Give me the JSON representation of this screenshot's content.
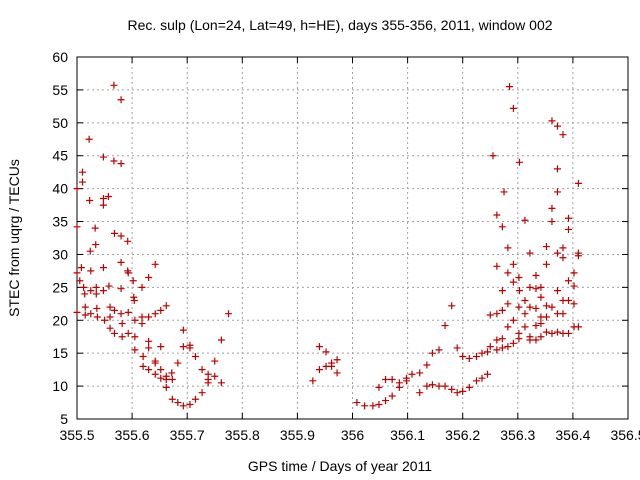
{
  "chart_data": {
    "type": "scatter",
    "title": "Rec. sulp (Lon=24, Lat=49, h=HE), days 355-356, 2011, window 002",
    "xlabel": "GPS time / Days of year 2011",
    "ylabel": "STEC from uqrg / TECUs",
    "xlim": [
      355.5,
      356.5
    ],
    "ylim": [
      5,
      60
    ],
    "xticks": [
      "355.5",
      "355.6",
      "355.7",
      "355.8",
      "355.9",
      "356",
      "356.1",
      "356.2",
      "356.3",
      "356.4",
      "356.5"
    ],
    "yticks": [
      "5",
      "10",
      "15",
      "20",
      "25",
      "30",
      "35",
      "40",
      "45",
      "50",
      "55",
      "60"
    ],
    "grid": true,
    "legend": "none",
    "marker": "plus",
    "color": "#c00000",
    "points": [
      [
        355.5,
        40.0
      ],
      [
        355.5,
        34.2
      ],
      [
        355.5,
        27.2
      ],
      [
        355.5,
        21.2
      ],
      [
        355.505,
        26.0
      ],
      [
        355.508,
        28.0
      ],
      [
        355.51,
        42.5
      ],
      [
        355.51,
        41.0
      ],
      [
        355.512,
        25.0
      ],
      [
        355.514,
        24.0
      ],
      [
        355.515,
        22.0
      ],
      [
        355.515,
        20.8
      ],
      [
        355.522,
        47.5
      ],
      [
        355.523,
        38.2
      ],
      [
        355.524,
        30.5
      ],
      [
        355.525,
        27.5
      ],
      [
        355.525,
        24.5
      ],
      [
        355.525,
        21.0
      ],
      [
        355.533,
        34.0
      ],
      [
        355.534,
        31.5
      ],
      [
        355.535,
        25.0
      ],
      [
        355.535,
        24.0
      ],
      [
        355.536,
        21.8
      ],
      [
        355.537,
        20.5
      ],
      [
        355.548,
        44.8
      ],
      [
        355.548,
        38.5
      ],
      [
        355.548,
        37.5
      ],
      [
        355.548,
        28.0
      ],
      [
        355.548,
        24.5
      ],
      [
        355.55,
        20.0
      ],
      [
        355.557,
        38.8
      ],
      [
        355.558,
        25.2
      ],
      [
        355.56,
        22.0
      ],
      [
        355.56,
        20.5
      ],
      [
        355.56,
        18.8
      ],
      [
        355.567,
        55.7
      ],
      [
        355.567,
        44.2
      ],
      [
        355.568,
        33.2
      ],
      [
        355.568,
        21.5
      ],
      [
        355.568,
        18.0
      ],
      [
        355.58,
        53.5
      ],
      [
        355.58,
        43.8
      ],
      [
        355.58,
        32.8
      ],
      [
        355.58,
        28.8
      ],
      [
        355.58,
        24.8
      ],
      [
        355.58,
        21.0
      ],
      [
        355.582,
        19.5
      ],
      [
        355.582,
        17.5
      ],
      [
        355.592,
        32.0
      ],
      [
        355.592,
        27.5
      ],
      [
        355.593,
        27.2
      ],
      [
        355.593,
        21.2
      ],
      [
        355.593,
        18.0
      ],
      [
        355.602,
        26.0
      ],
      [
        355.603,
        23.5
      ],
      [
        355.604,
        23.0
      ],
      [
        355.605,
        20.0
      ],
      [
        355.605,
        17.5
      ],
      [
        355.605,
        15.5
      ],
      [
        355.618,
        25.0
      ],
      [
        355.618,
        20.5
      ],
      [
        355.618,
        19.5
      ],
      [
        355.62,
        14.5
      ],
      [
        355.62,
        13.0
      ],
      [
        355.63,
        26.5
      ],
      [
        355.63,
        20.5
      ],
      [
        355.63,
        16.8
      ],
      [
        355.63,
        15.8
      ],
      [
        355.63,
        12.5
      ],
      [
        355.642,
        28.5
      ],
      [
        355.642,
        21.0
      ],
      [
        355.642,
        13.8
      ],
      [
        355.642,
        13.5
      ],
      [
        355.642,
        11.8
      ],
      [
        355.652,
        21.5
      ],
      [
        355.652,
        16.0
      ],
      [
        355.652,
        12.5
      ],
      [
        355.652,
        11.2
      ],
      [
        355.662,
        22.2
      ],
      [
        355.662,
        11.5
      ],
      [
        355.662,
        11.0
      ],
      [
        355.662,
        9.8
      ],
      [
        355.672,
        12.0
      ],
      [
        355.673,
        11.0
      ],
      [
        355.673,
        8.0
      ],
      [
        355.683,
        13.5
      ],
      [
        355.683,
        7.5
      ],
      [
        355.693,
        18.5
      ],
      [
        355.693,
        16.0
      ],
      [
        355.693,
        7.0
      ],
      [
        355.705,
        16.2
      ],
      [
        355.705,
        15.8
      ],
      [
        355.705,
        7.2
      ],
      [
        355.715,
        14.5
      ],
      [
        355.715,
        8.0
      ],
      [
        355.727,
        12.5
      ],
      [
        355.727,
        9.0
      ],
      [
        355.738,
        11.8
      ],
      [
        355.738,
        11.0
      ],
      [
        355.738,
        10.5
      ],
      [
        355.75,
        13.8
      ],
      [
        355.75,
        11.5
      ],
      [
        355.762,
        17.0
      ],
      [
        355.762,
        10.5
      ],
      [
        355.775,
        21.0
      ],
      [
        355.928,
        10.8
      ],
      [
        355.94,
        16.0
      ],
      [
        355.94,
        12.5
      ],
      [
        355.952,
        15.2
      ],
      [
        355.952,
        13.0
      ],
      [
        355.962,
        13.5
      ],
      [
        355.962,
        13.0
      ],
      [
        355.972,
        14.0
      ],
      [
        355.972,
        12.0
      ],
      [
        356.008,
        7.5
      ],
      [
        356.022,
        7.0
      ],
      [
        356.037,
        7.0
      ],
      [
        356.048,
        9.8
      ],
      [
        356.048,
        7.2
      ],
      [
        356.06,
        11.0
      ],
      [
        356.06,
        7.8
      ],
      [
        356.072,
        11.0
      ],
      [
        356.072,
        8.5
      ],
      [
        356.085,
        10.5
      ],
      [
        356.085,
        9.8
      ],
      [
        356.098,
        11.2
      ],
      [
        356.098,
        10.8
      ],
      [
        356.108,
        11.8
      ],
      [
        356.122,
        12.0
      ],
      [
        356.122,
        9.0
      ],
      [
        356.135,
        13.2
      ],
      [
        356.135,
        10.0
      ],
      [
        356.145,
        15.0
      ],
      [
        356.145,
        10.2
      ],
      [
        356.157,
        15.5
      ],
      [
        356.157,
        10.0
      ],
      [
        356.168,
        19.2
      ],
      [
        356.168,
        10.0
      ],
      [
        356.18,
        22.2
      ],
      [
        356.18,
        9.5
      ],
      [
        356.19,
        15.8
      ],
      [
        356.19,
        9.0
      ],
      [
        356.2,
        14.5
      ],
      [
        356.2,
        9.2
      ],
      [
        356.212,
        14.2
      ],
      [
        356.212,
        9.8
      ],
      [
        356.225,
        14.5
      ],
      [
        356.225,
        10.8
      ],
      [
        356.235,
        15.0
      ],
      [
        356.235,
        11.2
      ],
      [
        356.245,
        15.2
      ],
      [
        356.245,
        11.8
      ],
      [
        356.25,
        20.8
      ],
      [
        356.25,
        16.0
      ],
      [
        356.255,
        45.0
      ],
      [
        356.262,
        36.0
      ],
      [
        356.262,
        28.2
      ],
      [
        356.262,
        21.0
      ],
      [
        356.262,
        17.0
      ],
      [
        356.262,
        15.5
      ],
      [
        356.272,
        34.2
      ],
      [
        356.272,
        24.5
      ],
      [
        356.272,
        21.5
      ],
      [
        356.272,
        17.2
      ],
      [
        356.272,
        15.8
      ],
      [
        356.275,
        39.5
      ],
      [
        356.282,
        31.0
      ],
      [
        356.282,
        27.2
      ],
      [
        356.282,
        22.5
      ],
      [
        356.282,
        19.0
      ],
      [
        356.282,
        16.0
      ],
      [
        356.285,
        55.5
      ],
      [
        356.292,
        52.2
      ],
      [
        356.292,
        28.5
      ],
      [
        356.292,
        25.8
      ],
      [
        356.292,
        20.0
      ],
      [
        356.292,
        16.5
      ],
      [
        356.302,
        26.5
      ],
      [
        356.302,
        22.0
      ],
      [
        356.302,
        18.0
      ],
      [
        356.302,
        17.2
      ],
      [
        356.303,
        44.0
      ],
      [
        356.303,
        24.5
      ],
      [
        356.313,
        35.2
      ],
      [
        356.313,
        23.0
      ],
      [
        356.313,
        21.0
      ],
      [
        356.313,
        19.0
      ],
      [
        356.322,
        30.2
      ],
      [
        356.322,
        25.0
      ],
      [
        356.322,
        22.0
      ],
      [
        356.322,
        17.5
      ],
      [
        356.322,
        17.0
      ],
      [
        356.333,
        26.8
      ],
      [
        356.333,
        24.8
      ],
      [
        356.333,
        21.8
      ],
      [
        356.333,
        19.2
      ],
      [
        356.333,
        17.0
      ],
      [
        356.342,
        25.0
      ],
      [
        356.342,
        23.5
      ],
      [
        356.342,
        20.5
      ],
      [
        356.342,
        19.5
      ],
      [
        356.342,
        17.5
      ],
      [
        356.352,
        31.2
      ],
      [
        356.352,
        28.5
      ],
      [
        356.352,
        22.2
      ],
      [
        356.352,
        20.5
      ],
      [
        356.352,
        18.2
      ],
      [
        356.362,
        50.3
      ],
      [
        356.362,
        37.0
      ],
      [
        356.362,
        35.0
      ],
      [
        356.362,
        22.0
      ],
      [
        356.362,
        18.0
      ],
      [
        356.372,
        49.5
      ],
      [
        356.372,
        43.0
      ],
      [
        356.372,
        39.5
      ],
      [
        356.372,
        30.2
      ],
      [
        356.372,
        24.5
      ],
      [
        356.372,
        21.0
      ],
      [
        356.372,
        18.2
      ],
      [
        356.382,
        48.2
      ],
      [
        356.382,
        31.0
      ],
      [
        356.382,
        29.5
      ],
      [
        356.382,
        23.0
      ],
      [
        356.382,
        21.0
      ],
      [
        356.382,
        18.0
      ],
      [
        356.392,
        35.5
      ],
      [
        356.392,
        33.8
      ],
      [
        356.392,
        26.0
      ],
      [
        356.392,
        23.0
      ],
      [
        356.392,
        18.0
      ],
      [
        356.402,
        27.2
      ],
      [
        356.402,
        25.2
      ],
      [
        356.402,
        22.5
      ],
      [
        356.402,
        19.0
      ],
      [
        356.41,
        40.8
      ],
      [
        356.41,
        30.2
      ],
      [
        356.41,
        29.8
      ],
      [
        356.41,
        19.0
      ]
    ]
  }
}
